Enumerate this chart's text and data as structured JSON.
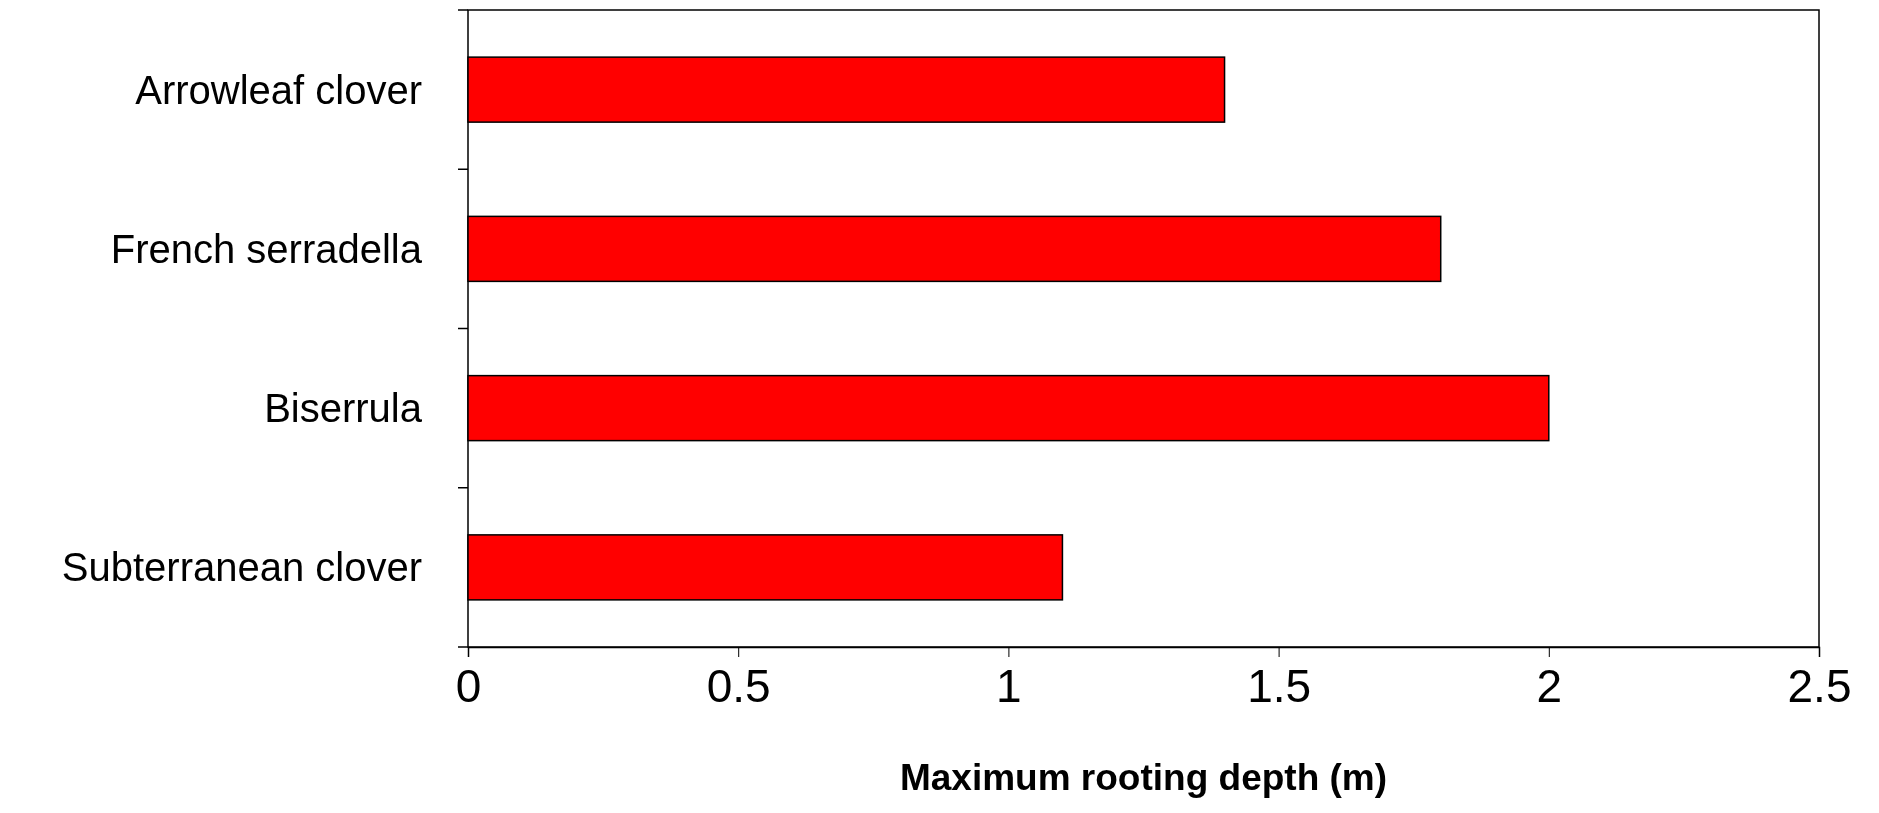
{
  "chart_data": {
    "type": "bar",
    "orientation": "horizontal",
    "xlabel": "Maximum rooting depth (m)",
    "categories": [
      "Arrowleaf clover",
      "French serradella",
      "Biserrula",
      "Subterranean clover"
    ],
    "values": [
      1.4,
      1.8,
      2.0,
      1.1
    ],
    "color": "#ff0000",
    "xlim": [
      0,
      2.5
    ],
    "xticks": [
      0,
      0.5,
      1,
      1.5,
      2,
      2.5
    ],
    "grid": false
  }
}
